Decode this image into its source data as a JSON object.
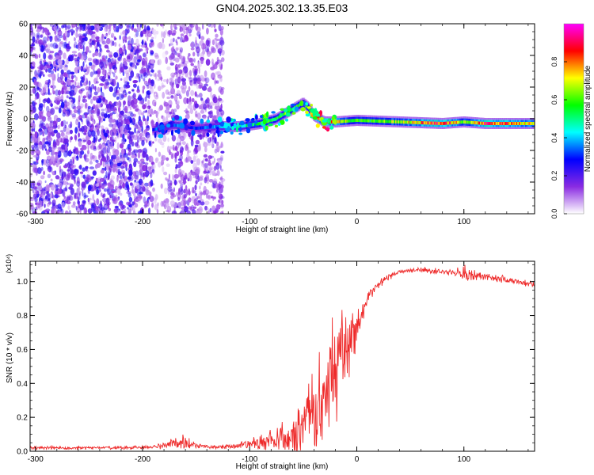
{
  "title": "GN04.2025.302.13.35.E03",
  "chart_data": [
    {
      "type": "heatmap",
      "xlabel": "Height of straight line (km)",
      "ylabel": "Frequency (Hz)",
      "xlim": [
        -305,
        166
      ],
      "ylim": [
        -60,
        60
      ],
      "xticks": [
        -300,
        -200,
        -100,
        0,
        100
      ],
      "xtick_labels": [
        "-300",
        "-200",
        "-100",
        "0",
        "100"
      ],
      "yticks": [
        -60,
        -40,
        -20,
        0,
        20,
        40,
        60
      ],
      "ytick_labels": [
        "-60",
        "-40",
        "-20",
        "0",
        "20",
        "40",
        "60"
      ],
      "colorbar": {
        "label": "Normalized spectral amplitude",
        "range": [
          0,
          1
        ],
        "ticks": [
          0.0,
          0.2,
          0.4,
          0.6,
          0.8
        ],
        "tick_labels": [
          "0.0",
          "0.2",
          "0.4",
          "0.6",
          "0.8"
        ],
        "colors": [
          "#ffffff",
          "#8a2be2",
          "#0000ff",
          "#00ffff",
          "#00ff00",
          "#ffff00",
          "#ff0000",
          "#ff00ff"
        ]
      },
      "ridge": {
        "x": [
          -190,
          -170,
          -150,
          -130,
          -110,
          -90,
          -75,
          -60,
          -50,
          -45,
          -40,
          -30,
          -20,
          0,
          40,
          80,
          100,
          120,
          166
        ],
        "freq": [
          -7,
          -4,
          -6,
          -5,
          -5,
          -3,
          0,
          6,
          10,
          7,
          2,
          -2,
          -2,
          -1,
          -2,
          -3,
          -2,
          -3,
          -3
        ],
        "amplitude": [
          0.32,
          0.35,
          0.3,
          0.38,
          0.45,
          0.55,
          0.58,
          0.6,
          0.55,
          0.6,
          0.7,
          0.82,
          0.75,
          0.55,
          0.65,
          0.9,
          0.62,
          0.85,
          0.72
        ]
      },
      "noise_regions": [
        {
          "x": [
            -305,
            -190
          ],
          "amplitude": 0.18
        },
        {
          "x": [
            -190,
            -175
          ],
          "amplitude": 0.08
        },
        {
          "x": [
            -175,
            -125
          ],
          "amplitude": 0.14
        }
      ]
    },
    {
      "type": "line",
      "xlabel": "Height of straight line (km)",
      "ylabel": "SNR (10 * v/v)",
      "y_scale_label": "(x10⁴)",
      "xlim": [
        -305,
        166
      ],
      "ylim": [
        0,
        1.12
      ],
      "xticks": [
        -300,
        -200,
        -100,
        0,
        100
      ],
      "xtick_labels": [
        "-300",
        "-200",
        "-100",
        "0",
        "100"
      ],
      "yticks": [
        0,
        0.2,
        0.4,
        0.6,
        0.8,
        1.0
      ],
      "ytick_labels": [
        "0.0",
        "0.2",
        "0.4",
        "0.6",
        "0.8",
        "1.0"
      ],
      "color": "#ee2a2a",
      "series": [
        {
          "name": "SNR",
          "x": [
            -305,
            -260,
            -220,
            -190,
            -175,
            -165,
            -160,
            -150,
            -130,
            -115,
            -100,
            -90,
            -80,
            -72,
            -65,
            -60,
            -55,
            -50,
            -45,
            -40,
            -35,
            -30,
            -25,
            -20,
            -15,
            -10,
            -5,
            0,
            5,
            10,
            20,
            30,
            40,
            60,
            80,
            95,
            100,
            110,
            120,
            140,
            166
          ],
          "y": [
            0.02,
            0.02,
            0.02,
            0.025,
            0.04,
            0.06,
            0.05,
            0.03,
            0.025,
            0.03,
            0.04,
            0.05,
            0.07,
            0.09,
            0.06,
            0.08,
            0.11,
            0.15,
            0.18,
            0.22,
            0.28,
            0.34,
            0.4,
            0.48,
            0.55,
            0.6,
            0.66,
            0.72,
            0.8,
            0.9,
            0.98,
            1.03,
            1.06,
            1.07,
            1.06,
            1.05,
            1.04,
            1.04,
            1.03,
            1.01,
            0.98
          ],
          "spread": [
            0.01,
            0.01,
            0.01,
            0.012,
            0.03,
            0.05,
            0.04,
            0.015,
            0.012,
            0.02,
            0.03,
            0.05,
            0.07,
            0.09,
            0.08,
            0.1,
            0.14,
            0.18,
            0.22,
            0.28,
            0.32,
            0.36,
            0.35,
            0.32,
            0.28,
            0.25,
            0.18,
            0.12,
            0.06,
            0.04,
            0.025,
            0.02,
            0.015,
            0.015,
            0.02,
            0.03,
            0.06,
            0.03,
            0.025,
            0.02,
            0.02
          ]
        }
      ]
    }
  ]
}
